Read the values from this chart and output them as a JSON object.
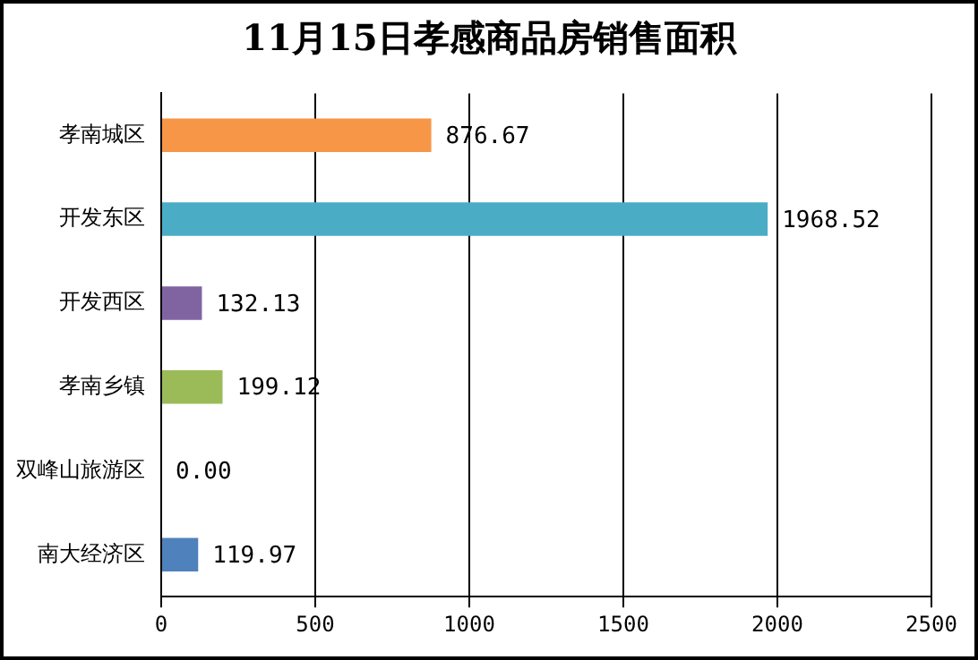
{
  "chart_data": {
    "type": "bar",
    "orientation": "horizontal",
    "title": "11月15日孝感商品房销售面积",
    "categories": [
      "孝南城区",
      "开发东区",
      "开发西区",
      "孝南乡镇",
      "双峰山旅游区",
      "南大经济区"
    ],
    "values": [
      876.67,
      1968.52,
      132.13,
      199.12,
      0,
      119.97
    ],
    "colors": [
      "#f79646",
      "#4bacc6",
      "#8064a2",
      "#9bbb59",
      "#2c4d75",
      "#4f81bd"
    ],
    "value_labels": [
      "876.67",
      "1968.52",
      "132.13",
      "199.12",
      "0.00",
      "119.97"
    ],
    "xlim": [
      0,
      2500
    ],
    "xticks": [
      0,
      500,
      1000,
      1500,
      2000,
      2500
    ],
    "grid": "x",
    "legend": false
  }
}
